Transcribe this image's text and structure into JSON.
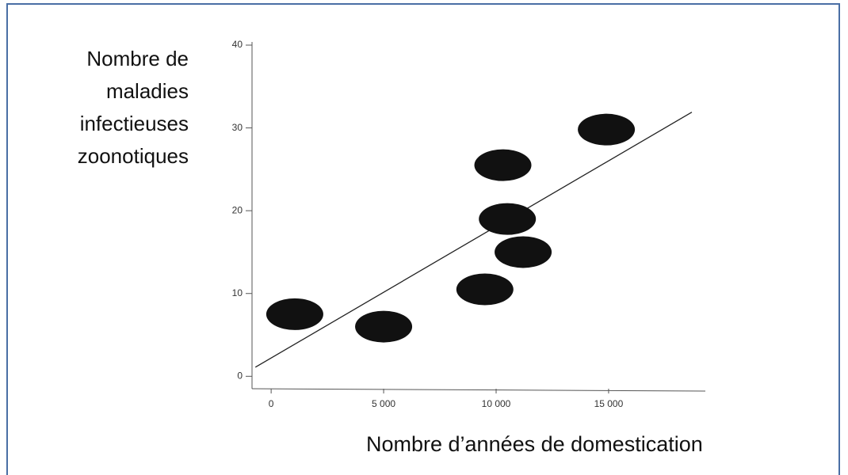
{
  "chart_data": {
    "type": "scatter",
    "ylabel": "Nombre de maladies infectieuses zoonotiques",
    "xlabel": "Nombre d’années de domestication",
    "x": [
      1050,
      5000,
      9500,
      11200,
      10500,
      10300,
      14900
    ],
    "values": [
      7.5,
      6,
      10.5,
      15,
      19,
      25.5,
      29.8
    ],
    "color": "#111111",
    "trend_line": {
      "x": [
        -700,
        18700
      ],
      "y": [
        1.1,
        31.9
      ]
    },
    "xlim": [
      -850,
      19300
    ],
    "ylim": [
      -1.5,
      40
    ],
    "xticks": [
      0,
      {
        "value": 5000,
        "label": "5 000"
      },
      {
        "value": 10000,
        "label": "10 000"
      },
      {
        "value": 15000,
        "label": "15 000"
      }
    ],
    "yticks": [
      0,
      10,
      20,
      30,
      40
    ]
  }
}
